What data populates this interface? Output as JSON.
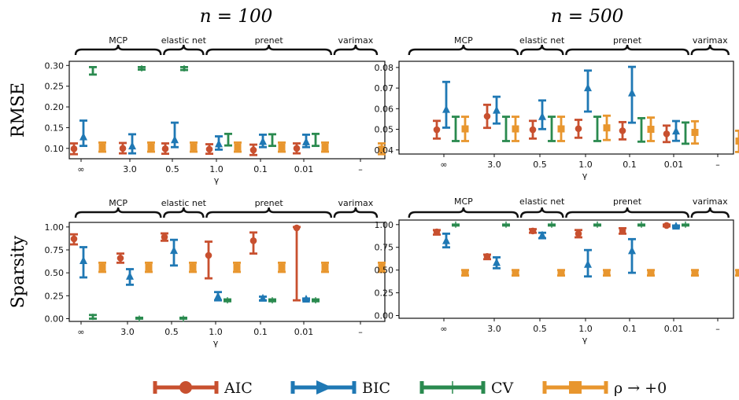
{
  "colors": {
    "AIC": "#c8502f",
    "BIC": "#1f78b4",
    "CV": "#2a8a4f",
    "rho": "#e8962e"
  },
  "legend": [
    {
      "key": "AIC",
      "label": "AIC",
      "marker": "circle"
    },
    {
      "key": "BIC",
      "label": "BIC",
      "marker": "triangle"
    },
    {
      "key": "CV",
      "label": "CV",
      "marker": "bar"
    },
    {
      "key": "rho",
      "label": "ρ → +0",
      "marker": "square"
    }
  ],
  "chart_data": [
    {
      "type": "scatter",
      "column_title": "n = 100",
      "ylabel": "RMSE",
      "xlabel": "γ",
      "groups": [
        "MCP",
        "elastic net",
        "prenet",
        "varimax"
      ],
      "categories": [
        "∞",
        "3.0",
        "0.5",
        "1.0",
        "0.1",
        "0.01",
        "–"
      ],
      "ylim": [
        0.075,
        0.31
      ],
      "yticks": [
        "0.10",
        "0.15",
        "0.20",
        "0.25",
        "0.30"
      ],
      "series": [
        {
          "name": "AIC",
          "points": [
            {
              "x": "∞",
              "y": 0.099,
              "lo": 0.086,
              "hi": 0.112
            },
            {
              "x": "3.0",
              "y": 0.1,
              "lo": 0.088,
              "hi": 0.113
            },
            {
              "x": "0.5",
              "y": 0.099,
              "lo": 0.087,
              "hi": 0.112
            },
            {
              "x": "1.0",
              "y": 0.098,
              "lo": 0.087,
              "hi": 0.11
            },
            {
              "x": "0.1",
              "y": 0.096,
              "lo": 0.084,
              "hi": 0.109
            },
            {
              "x": "0.01",
              "y": 0.1,
              "lo": 0.088,
              "hi": 0.112
            }
          ]
        },
        {
          "name": "BIC",
          "points": [
            {
              "x": "∞",
              "y": 0.127,
              "lo": 0.106,
              "hi": 0.167
            },
            {
              "x": "3.0",
              "y": 0.105,
              "lo": 0.088,
              "hi": 0.134
            },
            {
              "x": "0.5",
              "y": 0.12,
              "lo": 0.103,
              "hi": 0.162
            },
            {
              "x": "1.0",
              "y": 0.11,
              "lo": 0.097,
              "hi": 0.129
            },
            {
              "x": "0.1",
              "y": 0.116,
              "lo": 0.103,
              "hi": 0.133
            },
            {
              "x": "0.01",
              "y": 0.115,
              "lo": 0.103,
              "hi": 0.133
            }
          ]
        },
        {
          "name": "CV",
          "points": [
            {
              "x": "∞",
              "y": 0.287,
              "lo": 0.278,
              "hi": 0.296
            },
            {
              "x": "3.0",
              "y": 0.293,
              "lo": 0.29,
              "hi": 0.296
            },
            {
              "x": "0.5",
              "y": 0.293,
              "lo": 0.289,
              "hi": 0.296
            },
            {
              "x": "1.0",
              "y": 0.122,
              "lo": 0.107,
              "hi": 0.135
            },
            {
              "x": "0.1",
              "y": 0.12,
              "lo": 0.106,
              "hi": 0.134
            },
            {
              "x": "0.01",
              "y": 0.12,
              "lo": 0.106,
              "hi": 0.135
            }
          ]
        },
        {
          "name": "ρ → +0",
          "points": [
            {
              "x": "∞",
              "y": 0.103,
              "lo": 0.092,
              "hi": 0.114
            },
            {
              "x": "3.0",
              "y": 0.103,
              "lo": 0.092,
              "hi": 0.114
            },
            {
              "x": "0.5",
              "y": 0.103,
              "lo": 0.092,
              "hi": 0.114
            },
            {
              "x": "1.0",
              "y": 0.103,
              "lo": 0.092,
              "hi": 0.114
            },
            {
              "x": "0.1",
              "y": 0.103,
              "lo": 0.092,
              "hi": 0.114
            },
            {
              "x": "0.01",
              "y": 0.103,
              "lo": 0.092,
              "hi": 0.114
            },
            {
              "x": "–",
              "y": 0.098,
              "lo": 0.086,
              "hi": 0.112
            }
          ]
        }
      ]
    },
    {
      "type": "scatter",
      "column_title": "n = 500",
      "ylabel": "",
      "xlabel": "γ",
      "groups": [
        "MCP",
        "elastic net",
        "prenet",
        "varimax"
      ],
      "categories": [
        "∞",
        "3.0",
        "0.5",
        "1.0",
        "0.1",
        "0.01",
        "–"
      ],
      "ylim": [
        0.038,
        0.083
      ],
      "yticks": [
        "0.04",
        "0.05",
        "0.06",
        "0.07",
        "0.08"
      ],
      "series": [
        {
          "name": "AIC",
          "points": [
            {
              "x": "∞",
              "y": 0.0498,
              "lo": 0.0455,
              "hi": 0.0541
            },
            {
              "x": "3.0",
              "y": 0.0563,
              "lo": 0.0507,
              "hi": 0.0619
            },
            {
              "x": "0.5",
              "y": 0.0498,
              "lo": 0.0455,
              "hi": 0.0541
            },
            {
              "x": "1.0",
              "y": 0.0503,
              "lo": 0.0459,
              "hi": 0.0546
            },
            {
              "x": "0.1",
              "y": 0.0493,
              "lo": 0.0451,
              "hi": 0.0535
            },
            {
              "x": "0.01",
              "y": 0.0478,
              "lo": 0.0438,
              "hi": 0.0518
            }
          ]
        },
        {
          "name": "BIC",
          "points": [
            {
              "x": "∞",
              "y": 0.0595,
              "lo": 0.0508,
              "hi": 0.073
            },
            {
              "x": "3.0",
              "y": 0.0591,
              "lo": 0.0528,
              "hi": 0.0658
            },
            {
              "x": "0.5",
              "y": 0.056,
              "lo": 0.0501,
              "hi": 0.064
            },
            {
              "x": "1.0",
              "y": 0.07,
              "lo": 0.0586,
              "hi": 0.0785
            },
            {
              "x": "0.1",
              "y": 0.0675,
              "lo": 0.0532,
              "hi": 0.0803
            },
            {
              "x": "0.01",
              "y": 0.049,
              "lo": 0.0444,
              "hi": 0.054
            }
          ]
        },
        {
          "name": "CV",
          "points": [
            {
              "x": "∞",
              "y": 0.0502,
              "lo": 0.0443,
              "hi": 0.0561
            },
            {
              "x": "3.0",
              "y": 0.0502,
              "lo": 0.0443,
              "hi": 0.0561
            },
            {
              "x": "0.5",
              "y": 0.0502,
              "lo": 0.0443,
              "hi": 0.0561
            },
            {
              "x": "1.0",
              "y": 0.0502,
              "lo": 0.0443,
              "hi": 0.0561
            },
            {
              "x": "0.1",
              "y": 0.0497,
              "lo": 0.044,
              "hi": 0.0554
            },
            {
              "x": "0.01",
              "y": 0.0482,
              "lo": 0.043,
              "hi": 0.0533
            }
          ]
        },
        {
          "name": "ρ → +0",
          "points": [
            {
              "x": "∞",
              "y": 0.0502,
              "lo": 0.0443,
              "hi": 0.0561
            },
            {
              "x": "3.0",
              "y": 0.0502,
              "lo": 0.0443,
              "hi": 0.0561
            },
            {
              "x": "0.5",
              "y": 0.0502,
              "lo": 0.0443,
              "hi": 0.0561
            },
            {
              "x": "1.0",
              "y": 0.0507,
              "lo": 0.0448,
              "hi": 0.0566
            },
            {
              "x": "0.1",
              "y": 0.05,
              "lo": 0.0443,
              "hi": 0.0557
            },
            {
              "x": "0.01",
              "y": 0.0485,
              "lo": 0.0431,
              "hi": 0.0539
            },
            {
              "x": "–",
              "y": 0.0443,
              "lo": 0.039,
              "hi": 0.0493
            }
          ]
        }
      ]
    },
    {
      "type": "scatter",
      "column_title": "",
      "ylabel": "Sparsity",
      "xlabel": "γ",
      "groups": [
        "MCP",
        "elastic net",
        "prenet",
        "varimax"
      ],
      "categories": [
        "∞",
        "3.0",
        "0.5",
        "1.0",
        "0.1",
        "0.01",
        "–"
      ],
      "ylim": [
        -0.03,
        1.05
      ],
      "yticks": [
        "0.00",
        "0.25",
        "0.50",
        "0.75",
        "1.00"
      ],
      "series": [
        {
          "name": "AIC",
          "points": [
            {
              "x": "∞",
              "y": 0.87,
              "lo": 0.81,
              "hi": 0.92
            },
            {
              "x": "3.0",
              "y": 0.66,
              "lo": 0.61,
              "hi": 0.71
            },
            {
              "x": "0.5",
              "y": 0.89,
              "lo": 0.85,
              "hi": 0.93
            },
            {
              "x": "1.0",
              "y": 0.69,
              "lo": 0.44,
              "hi": 0.84
            },
            {
              "x": "0.1",
              "y": 0.85,
              "lo": 0.71,
              "hi": 0.94
            },
            {
              "x": "0.01",
              "y": 0.99,
              "lo": 0.2,
              "hi": 1.0
            }
          ]
        },
        {
          "name": "BIC",
          "points": [
            {
              "x": "∞",
              "y": 0.63,
              "lo": 0.45,
              "hi": 0.78
            },
            {
              "x": "3.0",
              "y": 0.46,
              "lo": 0.37,
              "hi": 0.54
            },
            {
              "x": "0.5",
              "y": 0.74,
              "lo": 0.58,
              "hi": 0.86
            },
            {
              "x": "1.0",
              "y": 0.24,
              "lo": 0.2,
              "hi": 0.29
            },
            {
              "x": "0.1",
              "y": 0.22,
              "lo": 0.2,
              "hi": 0.24
            },
            {
              "x": "0.01",
              "y": 0.21,
              "lo": 0.2,
              "hi": 0.22
            }
          ]
        },
        {
          "name": "CV",
          "points": [
            {
              "x": "∞",
              "y": 0.02,
              "lo": 0.0,
              "hi": 0.04
            },
            {
              "x": "3.0",
              "y": 0.0,
              "lo": 0.0,
              "hi": 0.01
            },
            {
              "x": "0.5",
              "y": 0.0,
              "lo": 0.0,
              "hi": 0.01
            },
            {
              "x": "1.0",
              "y": 0.2,
              "lo": 0.19,
              "hi": 0.21
            },
            {
              "x": "0.1",
              "y": 0.2,
              "lo": 0.19,
              "hi": 0.21
            },
            {
              "x": "0.01",
              "y": 0.2,
              "lo": 0.19,
              "hi": 0.21
            }
          ]
        },
        {
          "name": "ρ → +0",
          "points": [
            {
              "x": "∞",
              "y": 0.56,
              "lo": 0.51,
              "hi": 0.61
            },
            {
              "x": "3.0",
              "y": 0.56,
              "lo": 0.51,
              "hi": 0.61
            },
            {
              "x": "0.5",
              "y": 0.56,
              "lo": 0.51,
              "hi": 0.61
            },
            {
              "x": "1.0",
              "y": 0.56,
              "lo": 0.51,
              "hi": 0.61
            },
            {
              "x": "0.1",
              "y": 0.56,
              "lo": 0.51,
              "hi": 0.61
            },
            {
              "x": "0.01",
              "y": 0.56,
              "lo": 0.51,
              "hi": 0.61
            },
            {
              "x": "–",
              "y": 0.56,
              "lo": 0.51,
              "hi": 0.61
            }
          ]
        }
      ]
    },
    {
      "type": "scatter",
      "column_title": "",
      "ylabel": "",
      "xlabel": "γ",
      "groups": [
        "MCP",
        "elastic net",
        "prenet",
        "varimax"
      ],
      "categories": [
        "∞",
        "3.0",
        "0.5",
        "1.0",
        "0.1",
        "0.01",
        "–"
      ],
      "ylim": [
        -0.03,
        1.05
      ],
      "yticks": [
        "0.00",
        "0.25",
        "0.50",
        "0.75",
        "1.00"
      ],
      "series": [
        {
          "name": "AIC",
          "points": [
            {
              "x": "∞",
              "y": 0.92,
              "lo": 0.89,
              "hi": 0.94
            },
            {
              "x": "3.0",
              "y": 0.65,
              "lo": 0.62,
              "hi": 0.67
            },
            {
              "x": "0.5",
              "y": 0.93,
              "lo": 0.91,
              "hi": 0.95
            },
            {
              "x": "1.0",
              "y": 0.9,
              "lo": 0.86,
              "hi": 0.94
            },
            {
              "x": "0.1",
              "y": 0.93,
              "lo": 0.9,
              "hi": 0.96
            },
            {
              "x": "0.01",
              "y": 0.99,
              "lo": 0.98,
              "hi": 1.0
            }
          ]
        },
        {
          "name": "BIC",
          "points": [
            {
              "x": "∞",
              "y": 0.82,
              "lo": 0.75,
              "hi": 0.9
            },
            {
              "x": "3.0",
              "y": 0.58,
              "lo": 0.52,
              "hi": 0.64
            },
            {
              "x": "0.5",
              "y": 0.88,
              "lo": 0.85,
              "hi": 0.91
            },
            {
              "x": "1.0",
              "y": 0.56,
              "lo": 0.43,
              "hi": 0.72
            },
            {
              "x": "0.1",
              "y": 0.71,
              "lo": 0.47,
              "hi": 0.84
            },
            {
              "x": "0.01",
              "y": 0.98,
              "lo": 0.97,
              "hi": 0.99
            }
          ]
        },
        {
          "name": "CV",
          "points": [
            {
              "x": "∞",
              "y": 1.0,
              "lo": 0.99,
              "hi": 1.0
            },
            {
              "x": "3.0",
              "y": 1.0,
              "lo": 0.99,
              "hi": 1.0
            },
            {
              "x": "0.5",
              "y": 1.0,
              "lo": 0.99,
              "hi": 1.0
            },
            {
              "x": "1.0",
              "y": 1.0,
              "lo": 0.99,
              "hi": 1.0
            },
            {
              "x": "0.1",
              "y": 1.0,
              "lo": 0.99,
              "hi": 1.0
            },
            {
              "x": "0.01",
              "y": 1.0,
              "lo": 0.99,
              "hi": 1.0
            }
          ]
        },
        {
          "name": "ρ → +0",
          "points": [
            {
              "x": "∞",
              "y": 0.47,
              "lo": 0.44,
              "hi": 0.5
            },
            {
              "x": "3.0",
              "y": 0.47,
              "lo": 0.44,
              "hi": 0.5
            },
            {
              "x": "0.5",
              "y": 0.47,
              "lo": 0.44,
              "hi": 0.5
            },
            {
              "x": "1.0",
              "y": 0.47,
              "lo": 0.44,
              "hi": 0.5
            },
            {
              "x": "0.1",
              "y": 0.47,
              "lo": 0.44,
              "hi": 0.5
            },
            {
              "x": "0.01",
              "y": 0.47,
              "lo": 0.44,
              "hi": 0.5
            },
            {
              "x": "–",
              "y": 0.47,
              "lo": 0.44,
              "hi": 0.5
            }
          ]
        }
      ]
    }
  ]
}
